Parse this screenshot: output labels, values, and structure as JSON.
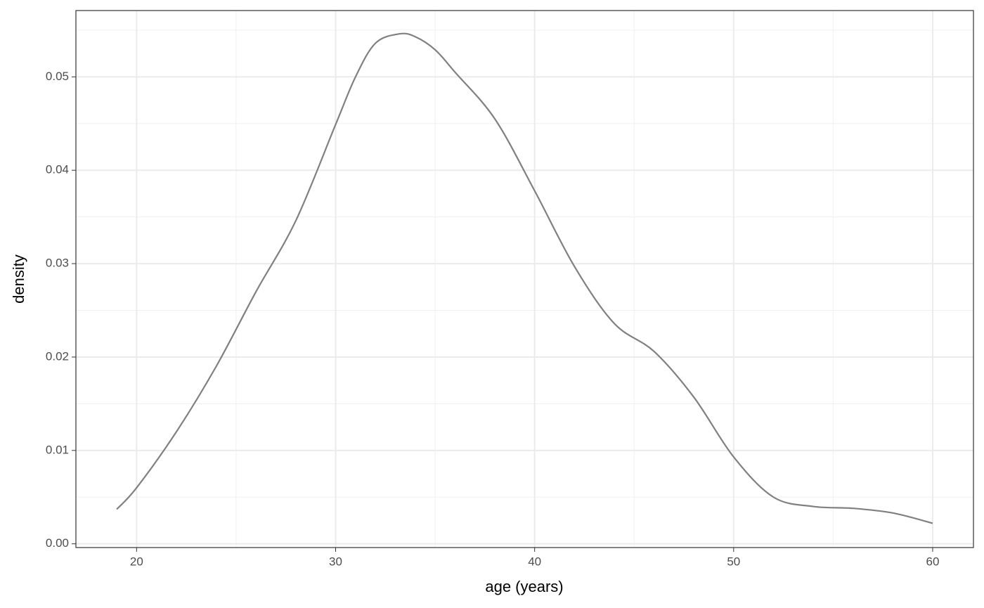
{
  "chart_data": {
    "type": "line",
    "x_label": "age (years)",
    "y_label": "density",
    "x": [
      19,
      20,
      22,
      24,
      26,
      28,
      30,
      31,
      32,
      33.2,
      34,
      35,
      36,
      38,
      40,
      42,
      44,
      46,
      48,
      50,
      52,
      54,
      56,
      58,
      60
    ],
    "series": [
      {
        "color": "#808080",
        "values": [
          0.0037,
          0.006,
          0.012,
          0.019,
          0.027,
          0.0346,
          0.0449,
          0.05,
          0.0536,
          0.0546,
          0.0543,
          0.0529,
          0.0505,
          0.0455,
          0.0378,
          0.0297,
          0.0236,
          0.0206,
          0.0157,
          0.0093,
          0.005,
          0.004,
          0.0038,
          0.0033,
          0.0022
        ]
      }
    ],
    "xlim": [
      16.95,
      62.05
    ],
    "ylim": [
      -0.0004,
      0.0571
    ],
    "xticks": [
      20,
      30,
      40,
      50,
      60
    ],
    "yticks": [
      {
        "value": 0,
        "label": "0.00"
      },
      0.01,
      0.02,
      0.03,
      0.04,
      0.05
    ],
    "x_minor_ticks": [
      25,
      35,
      45,
      55
    ],
    "y_minor_ticks": [
      0.005,
      0.015,
      0.025,
      0.035,
      0.045,
      0.055
    ],
    "grid": true
  }
}
